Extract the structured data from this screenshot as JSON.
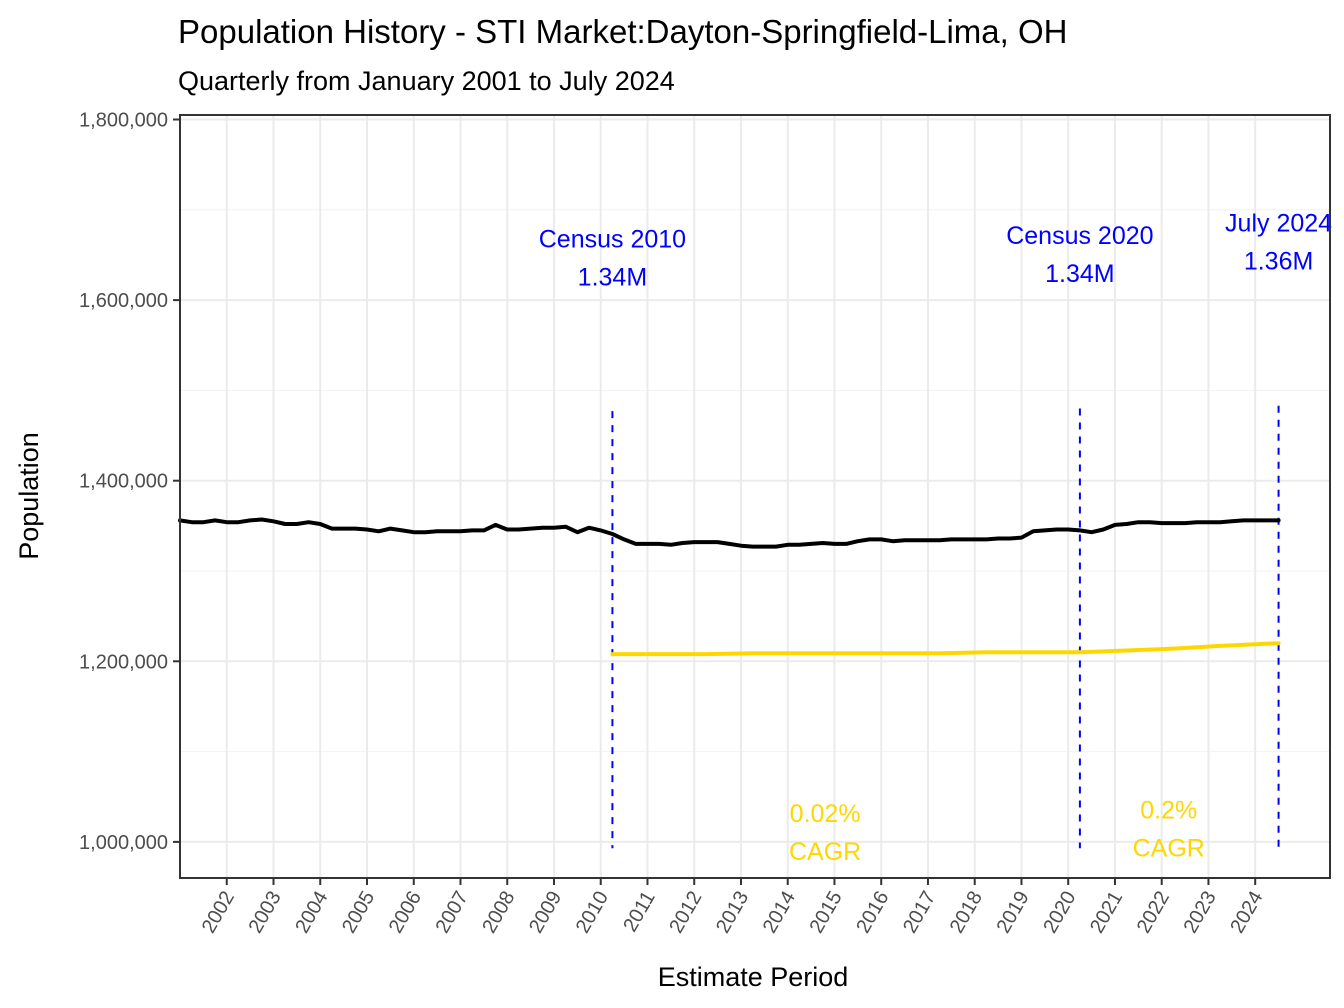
{
  "chart_data": {
    "type": "line",
    "title": "Population History - STI Market:Dayton-Springfield-Lima, OH",
    "subtitle": "Quarterly from January 2001 to July 2024",
    "xlabel": "Estimate Period",
    "ylabel": "Population",
    "ylim": [
      960000,
      1805000
    ],
    "xlim": [
      2001.0,
      2025.6
    ],
    "y_ticks": [
      1000000,
      1200000,
      1400000,
      1600000,
      1800000
    ],
    "y_tick_labels": [
      "1,000,000",
      "1,200,000",
      "1,400,000",
      "1,600,000",
      "1,800,000"
    ],
    "x_ticks": [
      2002,
      2003,
      2004,
      2005,
      2006,
      2007,
      2008,
      2009,
      2010,
      2011,
      2012,
      2013,
      2014,
      2015,
      2016,
      2017,
      2018,
      2019,
      2020,
      2021,
      2022,
      2023,
      2024
    ],
    "x_tick_labels": [
      "2002",
      "2003",
      "2004",
      "2005",
      "2006",
      "2007",
      "2008",
      "2009",
      "2010",
      "2011",
      "2012",
      "2013",
      "2014",
      "2015",
      "2016",
      "2017",
      "2018",
      "2019",
      "2020",
      "2021",
      "2022",
      "2023",
      "2024"
    ],
    "grid": true,
    "series": [
      {
        "name": "Population",
        "color": "#000000",
        "x": [
          2001.0,
          2001.25,
          2001.5,
          2001.75,
          2002.0,
          2002.25,
          2002.5,
          2002.75,
          2003.0,
          2003.25,
          2003.5,
          2003.75,
          2004.0,
          2004.25,
          2004.5,
          2004.75,
          2005.0,
          2005.25,
          2005.5,
          2005.75,
          2006.0,
          2006.25,
          2006.5,
          2006.75,
          2007.0,
          2007.25,
          2007.5,
          2007.75,
          2008.0,
          2008.25,
          2008.5,
          2008.75,
          2009.0,
          2009.25,
          2009.5,
          2009.75,
          2010.0,
          2010.25,
          2010.5,
          2010.75,
          2011.0,
          2011.25,
          2011.5,
          2011.75,
          2012.0,
          2012.25,
          2012.5,
          2012.75,
          2013.0,
          2013.25,
          2013.5,
          2013.75,
          2014.0,
          2014.25,
          2014.5,
          2014.75,
          2015.0,
          2015.25,
          2015.5,
          2015.75,
          2016.0,
          2016.25,
          2016.5,
          2016.75,
          2017.0,
          2017.25,
          2017.5,
          2017.75,
          2018.0,
          2018.25,
          2018.5,
          2018.75,
          2019.0,
          2019.25,
          2019.5,
          2019.75,
          2020.0,
          2020.25,
          2020.5,
          2020.75,
          2021.0,
          2021.25,
          2021.5,
          2021.75,
          2022.0,
          2022.25,
          2022.5,
          2022.75,
          2023.0,
          2023.25,
          2023.5,
          2023.75,
          2024.0,
          2024.25,
          2024.5
        ],
        "values": [
          1356000,
          1354000,
          1354000,
          1356000,
          1354000,
          1354000,
          1356000,
          1357000,
          1355000,
          1352000,
          1352000,
          1354000,
          1352000,
          1347000,
          1347000,
          1347000,
          1346000,
          1344000,
          1347000,
          1345000,
          1343000,
          1343000,
          1344000,
          1344000,
          1344000,
          1345000,
          1345000,
          1351000,
          1346000,
          1346000,
          1347000,
          1348000,
          1348000,
          1349000,
          1343000,
          1348000,
          1345000,
          1341000,
          1335000,
          1330000,
          1330000,
          1330000,
          1329000,
          1331000,
          1332000,
          1332000,
          1332000,
          1330000,
          1328000,
          1327000,
          1327000,
          1327000,
          1329000,
          1329000,
          1330000,
          1331000,
          1330000,
          1330000,
          1333000,
          1335000,
          1335000,
          1333000,
          1334000,
          1334000,
          1334000,
          1334000,
          1335000,
          1335000,
          1335000,
          1335000,
          1336000,
          1336000,
          1337000,
          1344000,
          1345000,
          1346000,
          1346000,
          1345000,
          1343000,
          1346000,
          1351000,
          1352000,
          1354000,
          1354000,
          1353000,
          1353000,
          1353000,
          1354000,
          1354000,
          1354000,
          1355000,
          1356000,
          1356000,
          1356000,
          1356000
        ]
      },
      {
        "name": "CAGR trend",
        "color": "#ffd700",
        "x": [
          2010.25,
          2011.25,
          2012.25,
          2013.25,
          2014.25,
          2015.25,
          2016.25,
          2017.25,
          2018.25,
          2019.25,
          2020.25,
          2021.25,
          2022.25,
          2023.25,
          2024.5
        ],
        "values": [
          1208000,
          1208000,
          1208000,
          1209000,
          1209000,
          1209000,
          1209000,
          1209000,
          1210000,
          1210000,
          1210000,
          1212000,
          1214000,
          1217000,
          1220000
        ]
      }
    ],
    "vlines": [
      {
        "x": 2010.25,
        "color": "#0000ff",
        "style": "dashed",
        "ymin": 993000,
        "ymax": 1477000
      },
      {
        "x": 2020.25,
        "color": "#0000ff",
        "style": "dashed",
        "ymin": 993000,
        "ymax": 1480000
      },
      {
        "x": 2024.5,
        "color": "#0000ff",
        "style": "dashed",
        "ymin": 993000,
        "ymax": 1483000
      }
    ],
    "annotations": [
      {
        "id": "census-2010",
        "lines": [
          "Census 2010",
          "1.34M"
        ],
        "x": 2010.25,
        "y": [
          1658000,
          1616000
        ],
        "color": "#0000ff"
      },
      {
        "id": "census-2020",
        "lines": [
          "Census 2020",
          "1.34M"
        ],
        "x": 2020.25,
        "y": [
          1662000,
          1620000
        ],
        "color": "#0000ff"
      },
      {
        "id": "july-2024",
        "lines": [
          "July 2024",
          "1.36M"
        ],
        "x": 2024.5,
        "y": [
          1676000,
          1634000
        ],
        "color": "#0000ff"
      },
      {
        "id": "cagr-2010-2020",
        "lines": [
          "0.02%",
          "CAGR"
        ],
        "x": 2014.8,
        "y": [
          1022000,
          980000
        ],
        "color": "#ffd700"
      },
      {
        "id": "cagr-2020-2024",
        "lines": [
          "0.2%",
          "CAGR"
        ],
        "x": 2022.15,
        "y": [
          1026000,
          984000
        ],
        "color": "#ffd700"
      }
    ]
  }
}
